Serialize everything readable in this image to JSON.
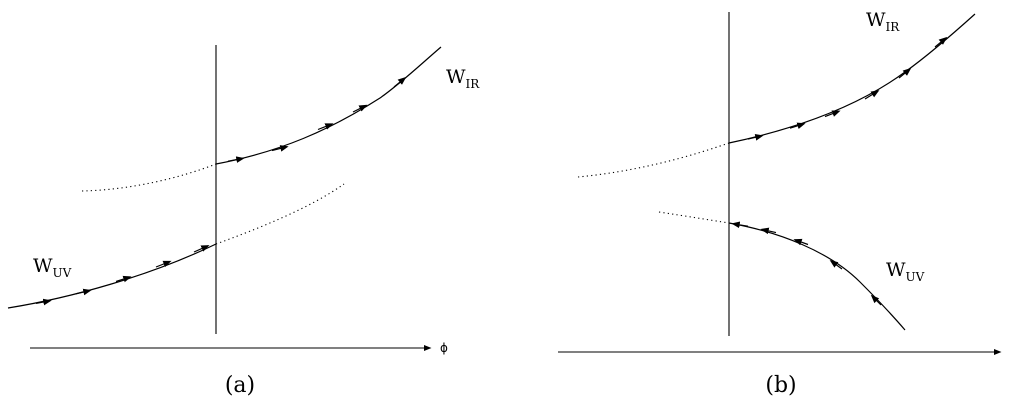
{
  "panels": [
    {
      "id": "a",
      "caption": "(a)",
      "axis_label": "ϕ",
      "curves": [
        {
          "letter": "W",
          "subscript": "IR"
        },
        {
          "letter": "W",
          "subscript": "UV"
        }
      ]
    },
    {
      "id": "b",
      "caption": "(b)",
      "curves": [
        {
          "letter": "W",
          "subscript": "IR"
        },
        {
          "letter": "W",
          "subscript": "UV"
        }
      ]
    }
  ]
}
